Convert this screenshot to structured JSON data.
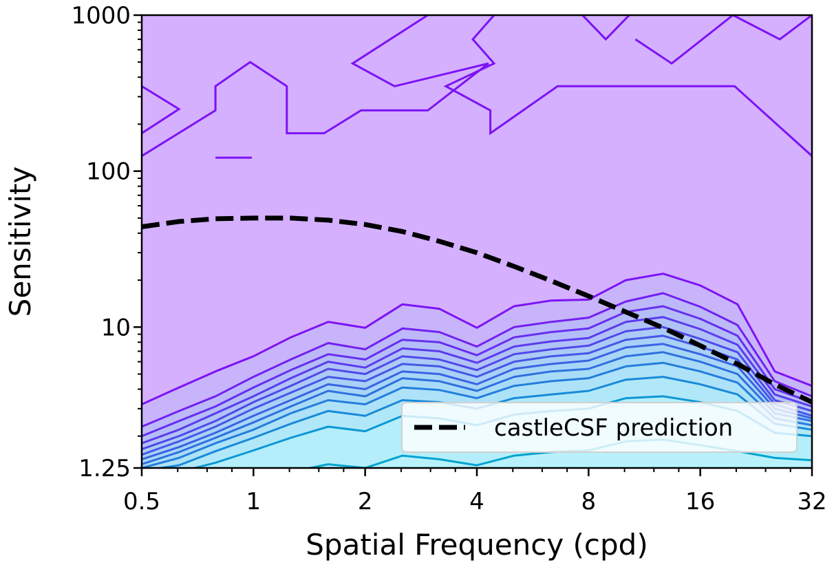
{
  "chart_data": {
    "type": "contour",
    "xlabel": "Spatial Frequency (cpd)",
    "ylabel": "Sensitivity",
    "x_scale": "log2",
    "y_scale": "log10",
    "xlim": [
      0.5,
      32
    ],
    "ylim": [
      1.25,
      1000
    ],
    "x_ticks": [
      {
        "value": 0.5,
        "label": "0.5"
      },
      {
        "value": 1,
        "label": "1"
      },
      {
        "value": 2,
        "label": "2"
      },
      {
        "value": 4,
        "label": "4"
      },
      {
        "value": 8,
        "label": "8"
      },
      {
        "value": 16,
        "label": "16"
      },
      {
        "value": 32,
        "label": "32"
      }
    ],
    "y_ticks": [
      {
        "value": 1.25,
        "label": "1.25"
      },
      {
        "value": 10,
        "label": "10"
      },
      {
        "value": 100,
        "label": "100"
      },
      {
        "value": 1000,
        "label": "1000"
      }
    ],
    "grid": false,
    "legend": {
      "position": "lower-right",
      "entries": [
        "castleCSF prediction"
      ]
    },
    "colors": {
      "background_fill": "#d4b0ff",
      "level_lines": [
        "#7d12f5",
        "#7220f2",
        "#672ef0",
        "#5b3bed",
        "#5048ea",
        "#4556e7",
        "#3963e3",
        "#2e70e0",
        "#237ddc",
        "#178ad8",
        "#0c97d4",
        "#01a3cf"
      ],
      "band_fills": [
        "#c8b4fb",
        "#bcb8f9",
        "#b4bdf8",
        "#b0c2f8",
        "#accaf7",
        "#a9d0f7",
        "#a8d6f7",
        "#a8dbf7",
        "#aee2f8",
        "#b1e8f9",
        "#b4eefa",
        "#b8f1fb"
      ],
      "prediction": "#000000"
    },
    "x_grid": [
      0.5,
      0.63,
      0.79,
      1.0,
      1.26,
      1.59,
      2.0,
      2.52,
      3.17,
      4.0,
      5.04,
      6.35,
      8.0,
      10.08,
      12.7,
      16.0,
      20.16,
      25.4,
      32.0
    ],
    "contour_levels": [
      {
        "level": 1,
        "y": [
          3.2,
          4.1,
          5.2,
          6.5,
          8.6,
          10.8,
          9.9,
          14.0,
          13.1,
          9.9,
          13.6,
          14.8,
          15.0,
          20.0,
          22.0,
          18.5,
          14.0,
          5.2,
          4.2
        ]
      },
      {
        "level": 2,
        "y": [
          2.3,
          2.9,
          3.6,
          4.8,
          6.2,
          7.9,
          7.2,
          9.8,
          9.3,
          7.5,
          10.0,
          10.8,
          11.5,
          14.6,
          16.5,
          13.5,
          10.3,
          4.5,
          3.6
        ]
      },
      {
        "level": 3,
        "y": [
          2.0,
          2.5,
          3.1,
          4.1,
          5.3,
          6.7,
          6.2,
          8.3,
          8.0,
          6.6,
          8.6,
          9.3,
          9.8,
          12.5,
          13.6,
          11.3,
          8.8,
          4.0,
          3.3
        ]
      },
      {
        "level": 4,
        "y": [
          1.8,
          2.2,
          2.8,
          3.6,
          4.7,
          6.0,
          5.5,
          7.3,
          7.0,
          5.9,
          7.5,
          8.1,
          8.5,
          10.8,
          11.6,
          9.7,
          7.7,
          3.7,
          3.1
        ]
      },
      {
        "level": 5,
        "y": [
          1.65,
          2.0,
          2.5,
          3.3,
          4.2,
          5.4,
          5.0,
          6.5,
          6.2,
          5.3,
          6.7,
          7.2,
          7.6,
          9.4,
          10.0,
          8.4,
          6.9,
          3.4,
          2.9
        ]
      },
      {
        "level": 6,
        "y": [
          1.52,
          1.85,
          2.3,
          3.0,
          3.8,
          4.8,
          4.5,
          5.8,
          5.6,
          4.8,
          6.0,
          6.5,
          6.8,
          8.3,
          8.8,
          7.5,
          6.2,
          3.2,
          2.7
        ]
      },
      {
        "level": 7,
        "y": [
          1.42,
          1.7,
          2.1,
          2.7,
          3.4,
          4.3,
          4.0,
          5.2,
          5.0,
          4.3,
          5.4,
          5.8,
          6.1,
          7.4,
          7.8,
          6.7,
          5.6,
          3.0,
          2.6
        ]
      },
      {
        "level": 8,
        "y": [
          1.32,
          1.58,
          1.95,
          2.45,
          3.1,
          3.9,
          3.6,
          4.7,
          4.5,
          3.9,
          4.8,
          5.2,
          5.4,
          6.5,
          6.9,
          6.0,
          5.0,
          2.8,
          2.5
        ]
      },
      {
        "level": 9,
        "y": [
          1.25,
          1.45,
          1.8,
          2.2,
          2.8,
          3.4,
          3.2,
          4.1,
          3.95,
          3.5,
          4.2,
          4.5,
          4.7,
          5.6,
          5.9,
          5.2,
          4.4,
          2.6,
          2.35
        ]
      },
      {
        "level": 10,
        "y": [
          1.2,
          1.3,
          1.6,
          1.95,
          2.4,
          2.9,
          2.7,
          3.4,
          3.3,
          3.0,
          3.5,
          3.7,
          3.9,
          4.6,
          4.8,
          4.3,
          3.7,
          2.4,
          2.2
        ]
      },
      {
        "level": 11,
        "y": [
          1.1,
          1.18,
          1.35,
          1.62,
          1.95,
          2.3,
          2.15,
          2.7,
          2.6,
          2.35,
          2.75,
          2.9,
          3.0,
          3.5,
          3.6,
          3.3,
          2.9,
          2.1,
          2.0
        ]
      },
      {
        "level": 12,
        "y": [
          0.9,
          0.95,
          1.0,
          1.08,
          1.18,
          1.32,
          1.25,
          1.5,
          1.42,
          1.3,
          1.5,
          1.58,
          1.62,
          1.85,
          1.9,
          1.75,
          1.6,
          1.45,
          1.4
        ]
      }
    ],
    "upper_contours": [
      [
        [
          0.5,
          350
        ],
        [
          0.63,
          250
        ],
        [
          0.5,
          175
        ]
      ],
      [
        [
          0.5,
          125
        ],
        [
          0.79,
          245
        ],
        [
          0.79,
          350
        ],
        [
          0.98,
          500
        ],
        [
          1.23,
          350
        ],
        [
          1.23,
          175
        ],
        [
          1.55,
          175
        ],
        [
          1.95,
          245
        ],
        [
          2.95,
          245
        ],
        [
          4.3,
          490
        ],
        [
          2.4,
          350
        ],
        [
          1.85,
          490
        ],
        [
          2.95,
          1000
        ]
      ],
      [
        [
          4.45,
          1000
        ],
        [
          3.9,
          700
        ],
        [
          4.45,
          490
        ],
        [
          3.3,
          350
        ],
        [
          4.35,
          245
        ],
        [
          4.35,
          175
        ],
        [
          6.6,
          350
        ],
        [
          19.8,
          350
        ],
        [
          32,
          125
        ]
      ],
      [
        [
          0.79,
          122
        ],
        [
          0.99,
          122
        ]
      ],
      [
        [
          10.7,
          700
        ],
        [
          13.4,
          490
        ],
        [
          19.6,
          1000
        ],
        [
          26.2,
          700
        ],
        [
          32,
          1000
        ]
      ],
      [
        [
          7.7,
          1000
        ],
        [
          8.9,
          700
        ],
        [
          10.3,
          1000
        ]
      ]
    ],
    "prediction": {
      "name": "castleCSF prediction",
      "x": [
        0.5,
        0.63,
        0.79,
        1.0,
        1.26,
        1.59,
        2.0,
        2.52,
        3.17,
        4.0,
        5.04,
        6.35,
        8.0,
        10.08,
        12.7,
        16.0,
        20.16,
        25.4,
        32.0
      ],
      "y": [
        44,
        47.5,
        49.5,
        50,
        50,
        48.5,
        45.5,
        41,
        35.5,
        30,
        24.5,
        19.8,
        15.8,
        12.5,
        9.9,
        7.6,
        5.8,
        4.3,
        3.3
      ]
    }
  }
}
